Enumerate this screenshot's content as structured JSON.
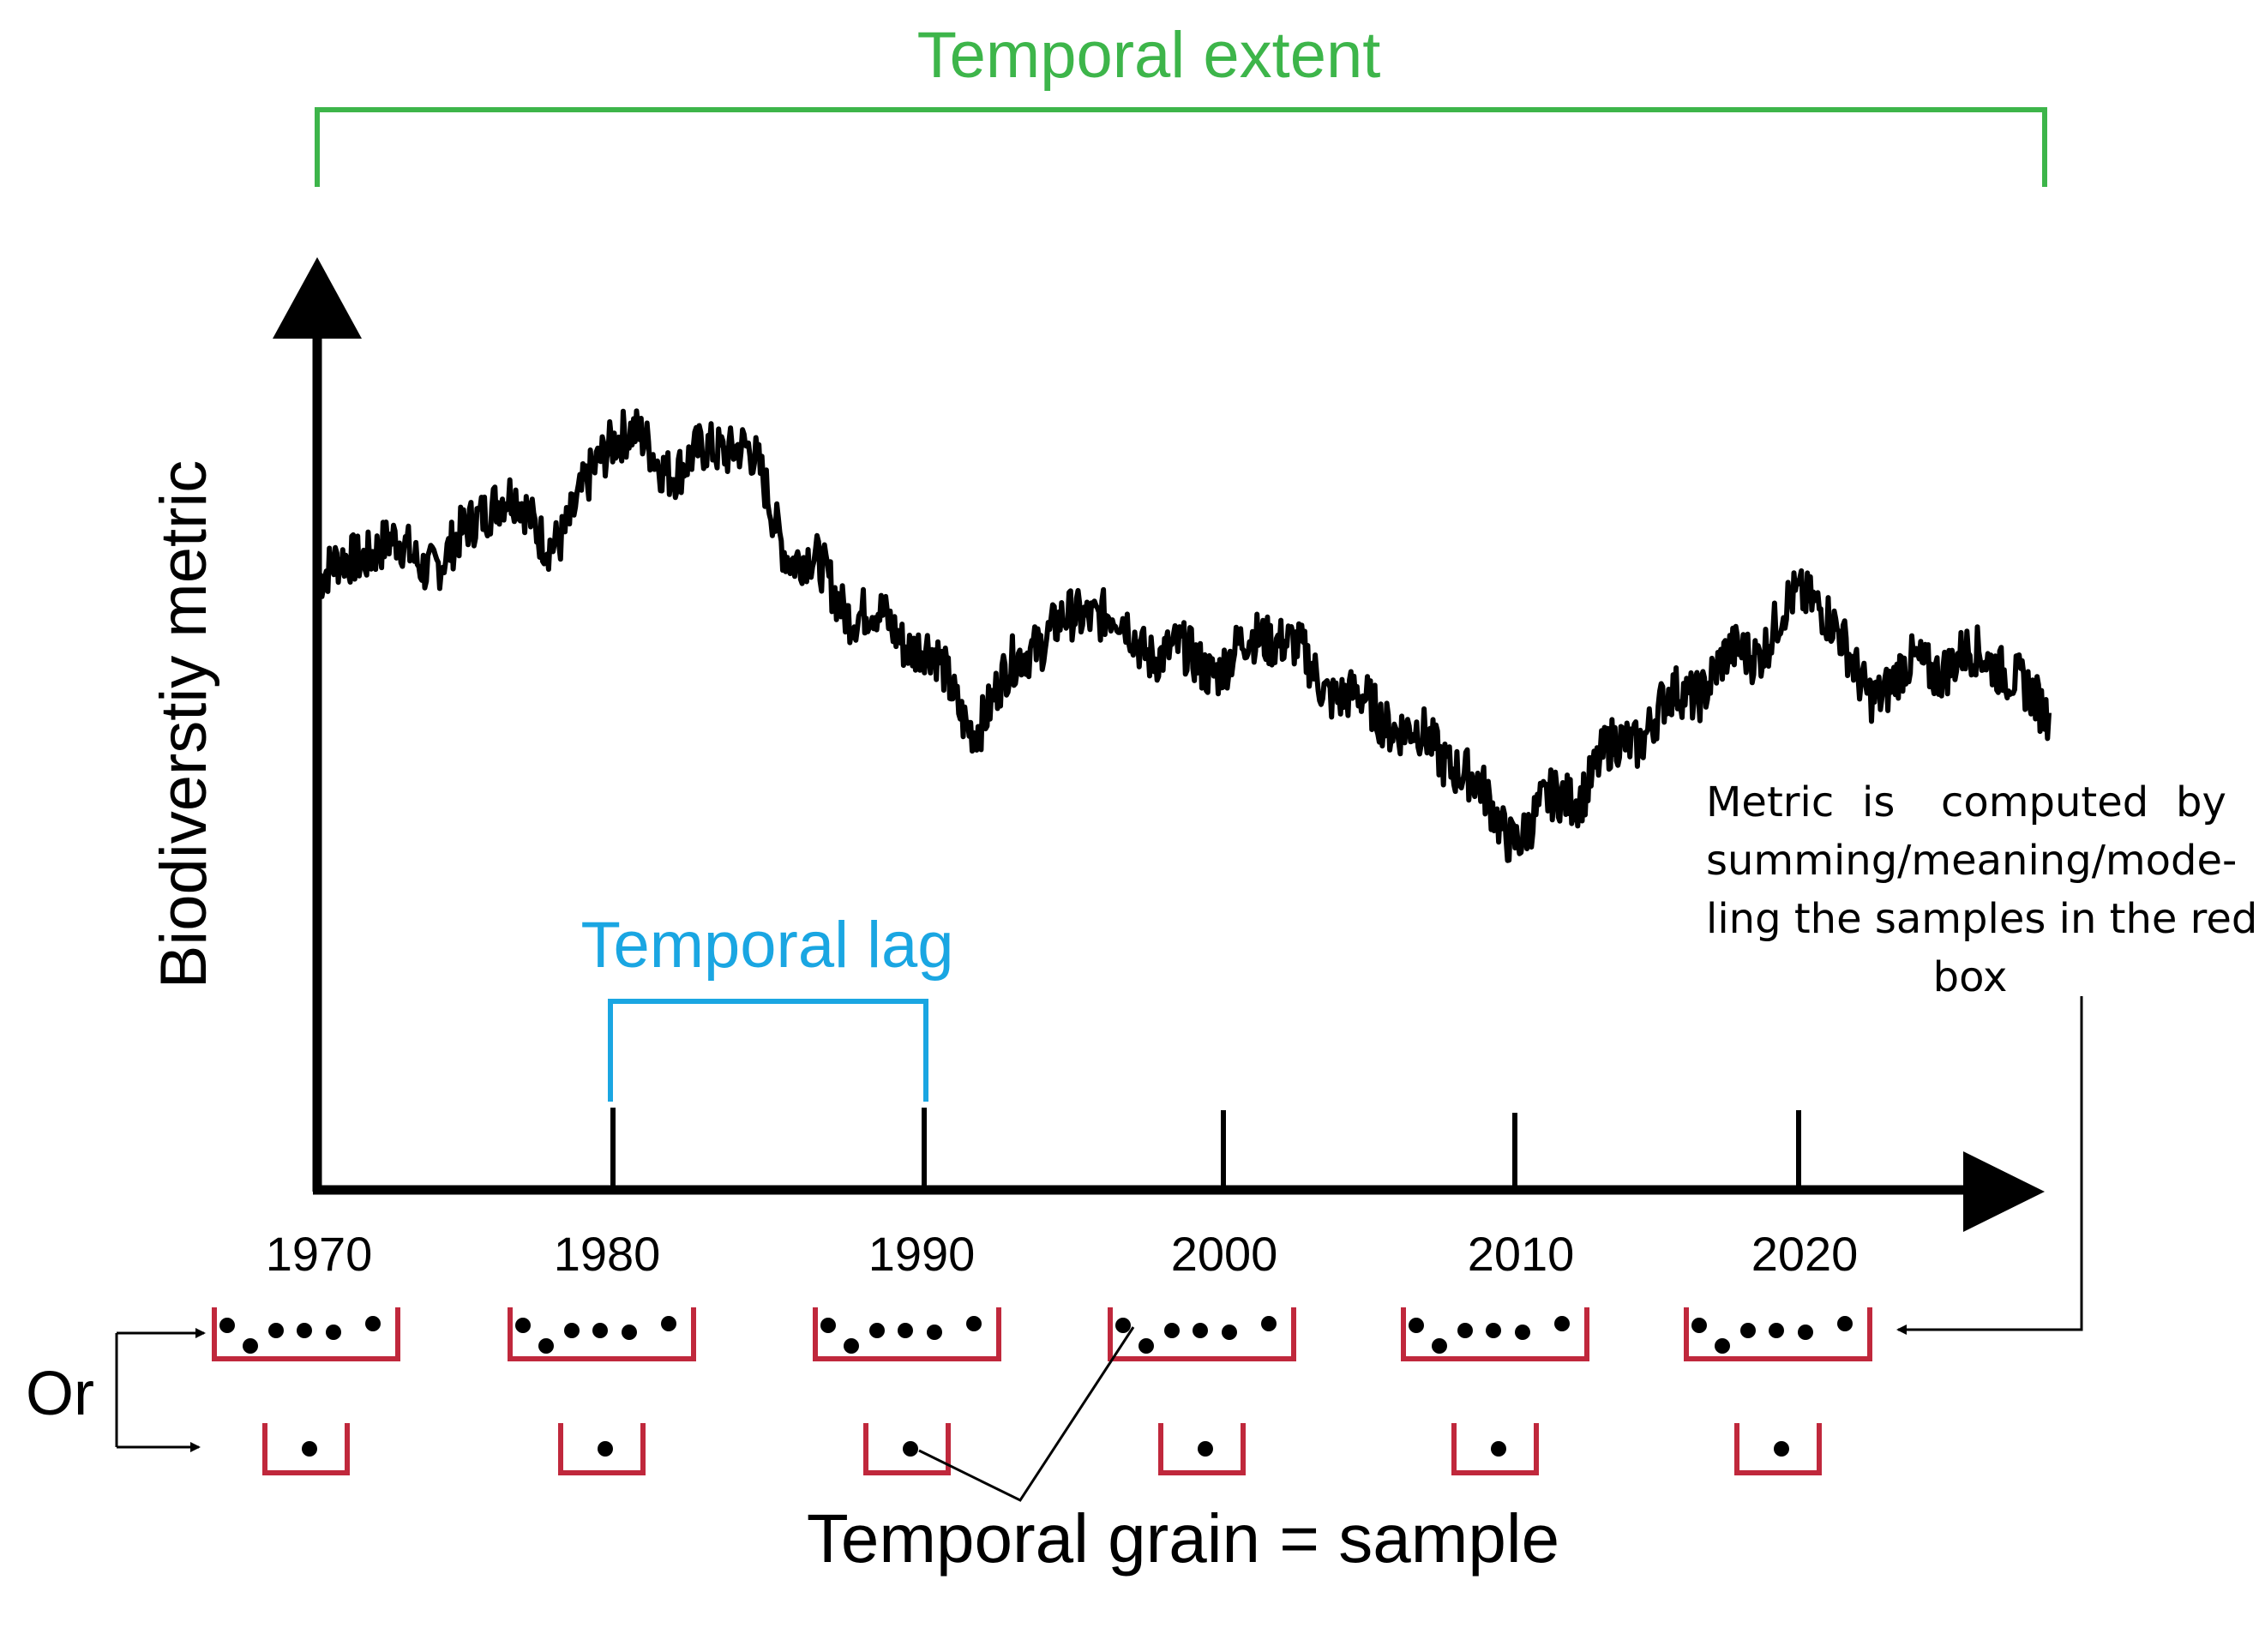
{
  "extent_label": "Temporal extent",
  "lag_label": "Temporal lag",
  "ylabel": "Biodiverstiy metric",
  "years": [
    "1970",
    "1980",
    "1990",
    "2000",
    "2010",
    "2020"
  ],
  "note": {
    "line1_words": [
      "Metric",
      "is",
      "computed",
      "by"
    ],
    "line2": "summing/meaning/mode-",
    "line3": "ling the samples in the red",
    "line4": "box"
  },
  "or_label": "Or",
  "grain_label": "Temporal grain = sample",
  "colors": {
    "extent": "#3db54a",
    "lag": "#1aa6e2",
    "sample_box": "#c0283c",
    "ink": "#000000"
  },
  "chart_data": {
    "type": "line",
    "xlabel": "",
    "ylabel": "Biodiverstiy metric",
    "x_ticks": [
      1970,
      1980,
      1990,
      2000,
      2010,
      2020
    ],
    "xlim": [
      1970,
      2028
    ],
    "ylim": [
      0,
      1
    ],
    "grid": false,
    "series": [
      {
        "x": [
          1970,
          1972,
          1974,
          1976,
          1978,
          1980,
          1982,
          1984,
          1986,
          1988,
          1990,
          1992,
          1994,
          1996,
          1998,
          2000,
          2002,
          2004,
          2006,
          2008,
          2010,
          2012,
          2014,
          2016,
          2018,
          2020,
          2022,
          2024,
          2026,
          2028
        ],
        "y": [
          0.62,
          0.66,
          0.64,
          0.72,
          0.67,
          0.8,
          0.76,
          0.79,
          0.65,
          0.58,
          0.54,
          0.44,
          0.54,
          0.58,
          0.53,
          0.51,
          0.55,
          0.48,
          0.44,
          0.39,
          0.3,
          0.35,
          0.42,
          0.48,
          0.53,
          0.6,
          0.48,
          0.51,
          0.52,
          0.45
        ]
      }
    ]
  }
}
